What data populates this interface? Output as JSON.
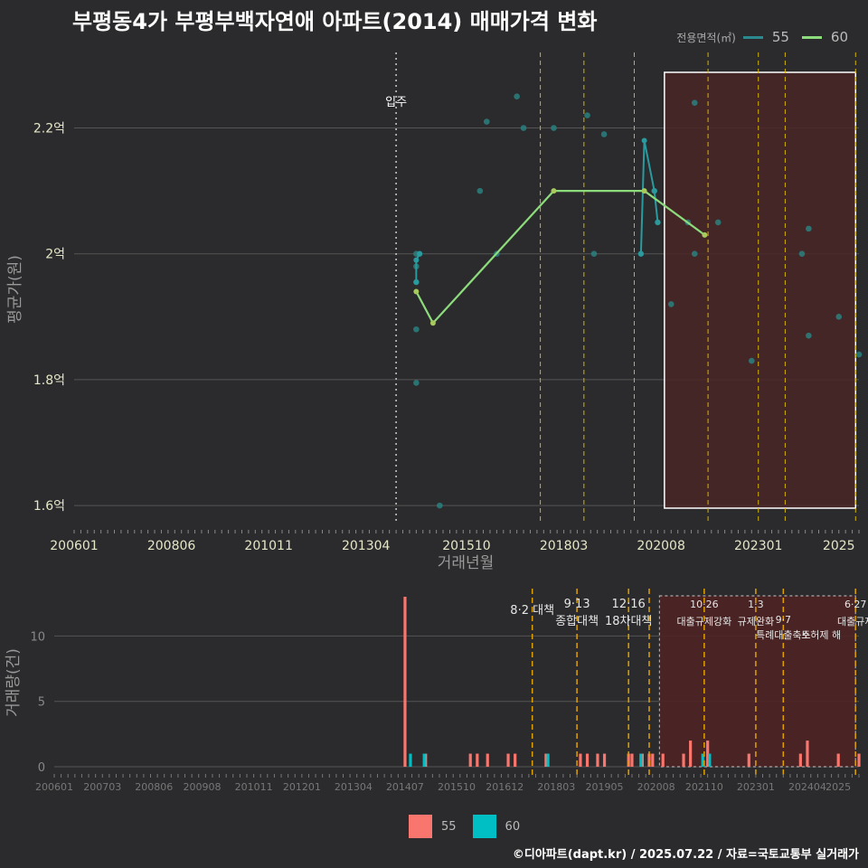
{
  "title": "부평동4가 부평부백자연애 아파트(2014) 매매가격 변화",
  "legend_top": {
    "title": "전용면적(㎡)",
    "items": [
      {
        "label": "55",
        "color": "#2a8a8f"
      },
      {
        "label": "60",
        "color": "#8ddc7c"
      }
    ]
  },
  "legend_bottom": {
    "items": [
      {
        "label": "55",
        "color": "#f8766d"
      },
      {
        "label": "60",
        "color": "#00bfc4"
      }
    ]
  },
  "caption": "©디아파트(dapt.kr) / 2025.07.22 / 자료=국토교통부 실거래가",
  "colors": {
    "background": "#2b2b2d",
    "grid": "#555555",
    "policy_line": "#d4b400",
    "shade": "#4a2626",
    "s55_point": "#2a8080",
    "s60_line": "#8ddc7c",
    "bar55": "#f8766d",
    "bar60": "#00bfc4"
  },
  "chart_data": [
    {
      "type": "line",
      "title": "부평동4가 부평부백자연애 아파트(2014) 매매가격 변화",
      "xlabel": "거래년월",
      "ylabel": "평균가(원)",
      "xlim": [
        "2006-01",
        "2025-07"
      ],
      "ylim": [
        1.57,
        2.32
      ],
      "x_ticks": [
        "200601",
        "200806",
        "201011",
        "201304",
        "201510",
        "201803",
        "202008",
        "202301",
        "2025"
      ],
      "y_ticks": [
        1.6,
        1.8,
        2.0,
        2.2
      ],
      "y_tick_labels": [
        "1.6억",
        "1.8억",
        "2억",
        "2.2억"
      ],
      "annotation": {
        "label": "입주",
        "x": "2014-01"
      },
      "policy_dates": [
        "2017-08",
        "2018-09",
        "2019-12",
        "2021-10",
        "2023-01",
        "2023-09",
        "2025-06"
      ],
      "shaded_range": [
        "2020-09",
        "2025-06"
      ],
      "series": [
        {
          "name": "55",
          "kind": "scatter",
          "points": [
            [
              "2014-07",
              2.0
            ],
            [
              "2014-07",
              1.98
            ],
            [
              "2014-07",
              1.955
            ],
            [
              "2014-07",
              1.88
            ],
            [
              "2014-07",
              1.795
            ],
            [
              "2014-08",
              2.0
            ],
            [
              "2015-02",
              1.6
            ],
            [
              "2016-02",
              2.1
            ],
            [
              "2016-04",
              2.21
            ],
            [
              "2016-07",
              2.0
            ],
            [
              "2017-01",
              2.25
            ],
            [
              "2017-03",
              2.2
            ],
            [
              "2017-12",
              2.2
            ],
            [
              "2018-10",
              2.22
            ],
            [
              "2018-12",
              2.0
            ],
            [
              "2019-03",
              2.19
            ],
            [
              "2020-02",
              2.0
            ],
            [
              "2020-06",
              2.1
            ],
            [
              "2020-07",
              2.05
            ],
            [
              "2020-11",
              1.92
            ],
            [
              "2021-04",
              2.05
            ],
            [
              "2021-06",
              2.24
            ],
            [
              "2021-06",
              2.0
            ],
            [
              "2022-01",
              2.05
            ],
            [
              "2022-11",
              1.83
            ],
            [
              "2024-02",
              2.0
            ],
            [
              "2024-04",
              2.04
            ],
            [
              "2024-04",
              1.87
            ],
            [
              "2025-01",
              1.9
            ],
            [
              "2025-07",
              1.84
            ]
          ]
        },
        {
          "name": "55",
          "kind": "line",
          "points": [
            [
              "2014-07",
              1.955
            ],
            [
              "2014-07",
              1.99
            ],
            [
              "2014-08",
              2.0
            ]
          ]
        },
        {
          "name": "55",
          "kind": "line",
          "points": [
            [
              "2020-02",
              2.0
            ],
            [
              "2020-03",
              2.18
            ],
            [
              "2020-06",
              2.1
            ],
            [
              "2020-07",
              2.05
            ]
          ]
        },
        {
          "name": "60",
          "kind": "line",
          "points": [
            [
              "2014-07",
              1.94
            ],
            [
              "2014-12",
              1.89
            ],
            [
              "2017-12",
              2.1
            ],
            [
              "2020-03",
              2.1
            ],
            [
              "2021-09",
              2.03
            ]
          ]
        }
      ]
    },
    {
      "type": "bar",
      "xlabel": "",
      "ylabel": "거래량(건)",
      "xlim": [
        "2006-01",
        "2025-07"
      ],
      "ylim": [
        0,
        13
      ],
      "x_ticks": [
        "200601",
        "200703",
        "200806",
        "200908",
        "201011",
        "201201",
        "201304",
        "201407",
        "201510",
        "201612",
        "201803",
        "201905",
        "202008",
        "202110",
        "202301",
        "202404",
        "2025"
      ],
      "y_ticks": [
        0,
        5,
        10
      ],
      "y_tick_labels": [
        "0",
        "5",
        "10"
      ],
      "shaded_range": [
        "2020-09",
        "2025-06"
      ],
      "policies": [
        {
          "date": "2017-08",
          "label": "8·2 대책",
          "line2": ""
        },
        {
          "date": "2018-09",
          "label": "9·13",
          "line2": "종합대책"
        },
        {
          "date": "2019-12",
          "label": "12·16",
          "line2": "18차대책"
        },
        {
          "date": "2020-06",
          "label": "",
          "line2": ""
        },
        {
          "date": "2021-10",
          "label": "10·26",
          "line2": "대출규제강화"
        },
        {
          "date": "2023-01",
          "label": "1·3",
          "line2": "규제완화"
        },
        {
          "date": "2023-09",
          "label": "9·7",
          "line2": "특례대출축소"
        },
        {
          "date": "2025-06",
          "label": "6·27",
          "line2": "대출규제"
        }
      ],
      "extra_annotation": "토허제 해",
      "series": [
        {
          "name": "55",
          "values": [
            [
              "2014-07",
              13
            ],
            [
              "2015-01",
              1
            ],
            [
              "2016-02",
              1
            ],
            [
              "2016-04",
              1
            ],
            [
              "2016-07",
              1
            ],
            [
              "2017-01",
              1
            ],
            [
              "2017-03",
              1
            ],
            [
              "2017-12",
              1
            ],
            [
              "2018-10",
              1
            ],
            [
              "2018-12",
              1
            ],
            [
              "2019-03",
              1
            ],
            [
              "2019-05",
              1
            ],
            [
              "2019-12",
              1
            ],
            [
              "2020-01",
              1
            ],
            [
              "2020-04",
              1
            ],
            [
              "2020-06",
              1
            ],
            [
              "2020-07",
              1
            ],
            [
              "2020-10",
              1
            ],
            [
              "2021-04",
              1
            ],
            [
              "2021-06",
              2
            ],
            [
              "2021-11",
              2
            ],
            [
              "2022-11",
              1
            ],
            [
              "2024-02",
              1
            ],
            [
              "2024-04",
              2
            ],
            [
              "2025-01",
              1
            ],
            [
              "2025-07",
              1
            ]
          ]
        },
        {
          "name": "60",
          "values": [
            [
              "2014-08",
              1
            ],
            [
              "2014-12",
              1
            ],
            [
              "2017-12",
              1
            ],
            [
              "2020-03",
              1
            ],
            [
              "2021-09",
              1
            ],
            [
              "2021-11",
              1
            ]
          ]
        }
      ]
    }
  ]
}
